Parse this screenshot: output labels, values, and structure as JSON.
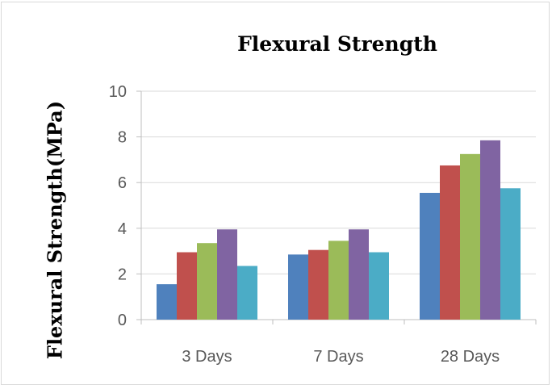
{
  "chart_data": {
    "type": "bar",
    "title": "Flexural Strength",
    "xlabel": "",
    "ylabel": "Flexural Strength(MPa)",
    "categories": [
      "3 Days",
      "7 Days",
      "28 Days"
    ],
    "ylim": [
      0,
      10
    ],
    "yticks": [
      0,
      2,
      4,
      6,
      8,
      10
    ],
    "grid": true,
    "legend": "none",
    "series": [
      {
        "color": "#4f81bd",
        "values": [
          1.55,
          2.85,
          5.55
        ]
      },
      {
        "color": "#c0504d",
        "values": [
          2.95,
          3.05,
          6.75
        ]
      },
      {
        "color": "#9bbb59",
        "values": [
          3.35,
          3.45,
          7.25
        ]
      },
      {
        "color": "#8064a2",
        "values": [
          3.95,
          3.95,
          7.85
        ]
      },
      {
        "color": "#4bacc6",
        "values": [
          2.35,
          2.95,
          5.75
        ]
      }
    ]
  }
}
